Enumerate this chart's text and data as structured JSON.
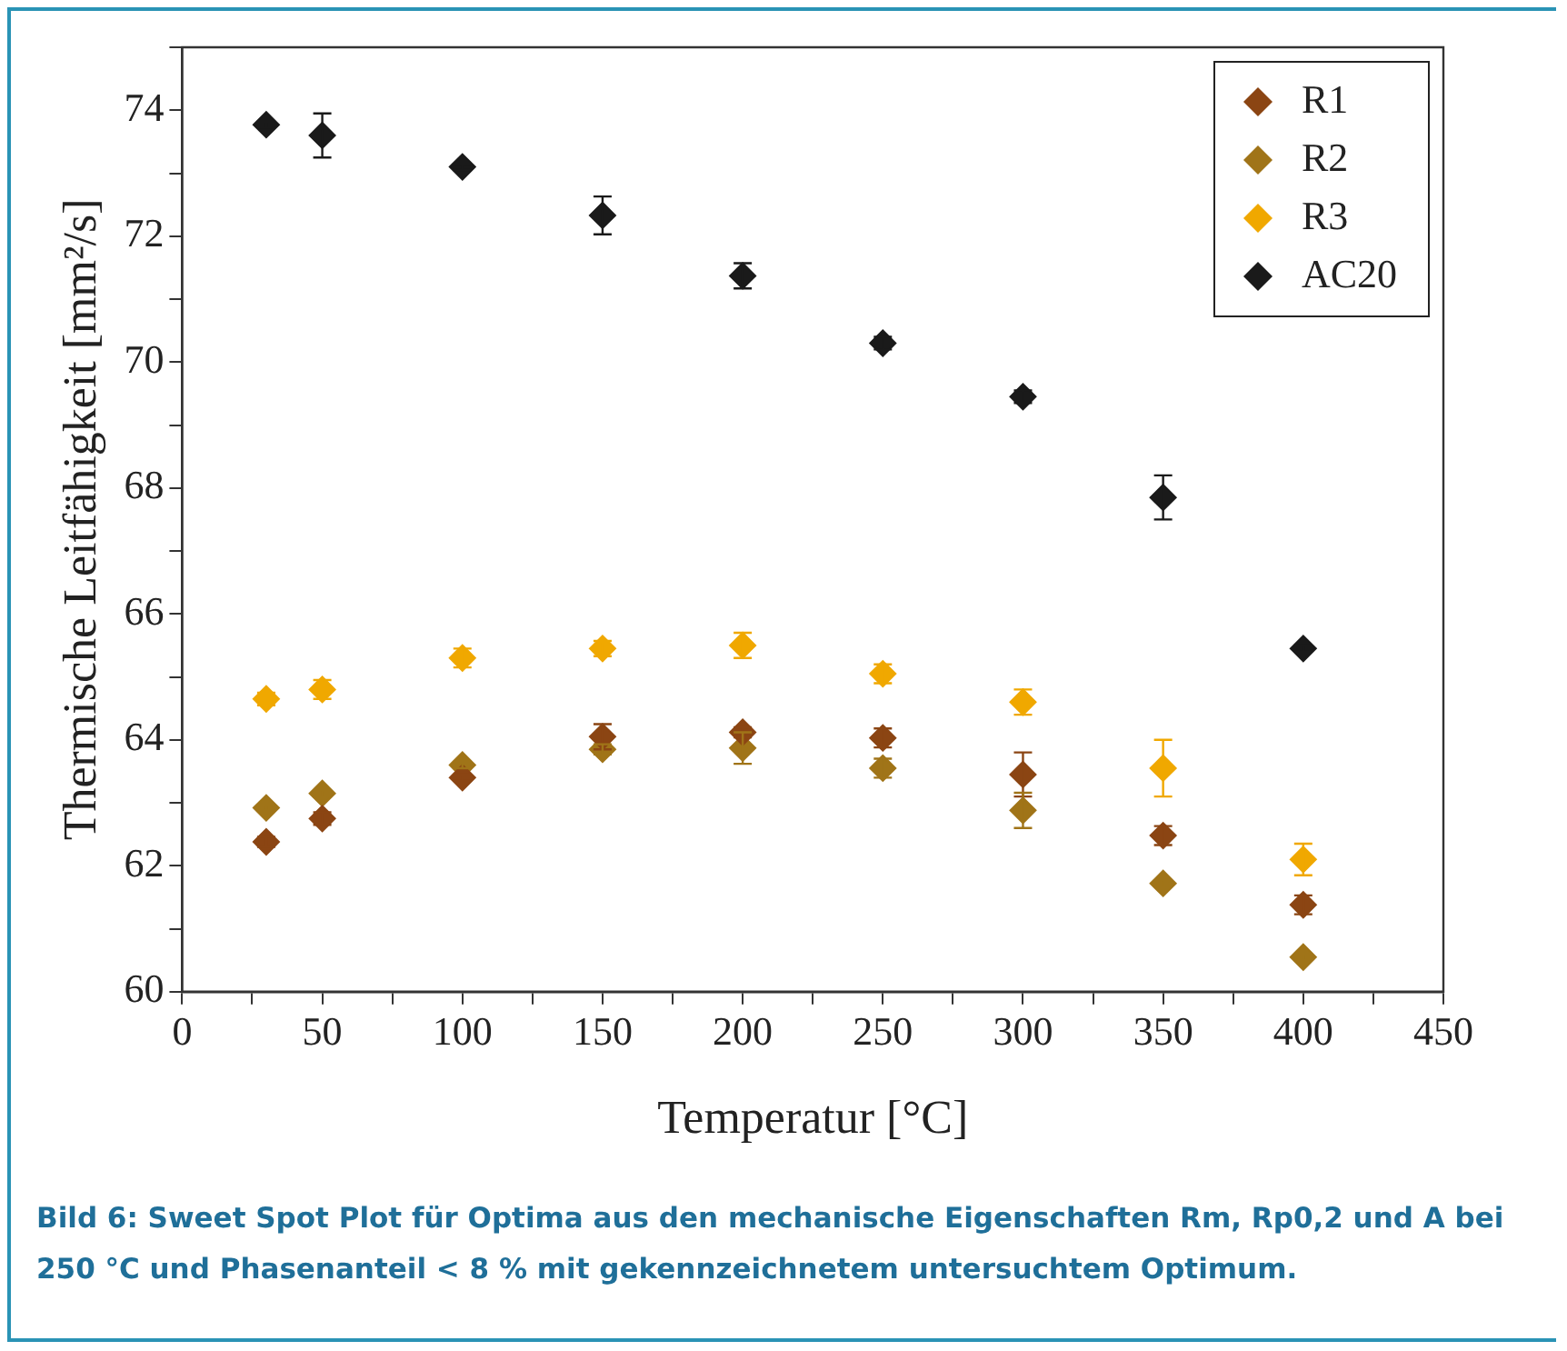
{
  "chart_data": {
    "type": "scatter",
    "xlabel": "Temperatur [°C]",
    "ylabel": "Thermische Leitfähigkeit [mm²/s]",
    "annotations": [
      "Bild 6: Sweet Spot Plot für Optima aus den mechanische Eigenschaften Rm, Rp0,2 und A bei 250 °C und Phasenanteil < 8 % mit gekennzeichnetem untersuchtem Optimum."
    ],
    "x": [
      30,
      50,
      100,
      150,
      200,
      250,
      300,
      350,
      400
    ],
    "series": [
      {
        "name": "R1",
        "color": "#8b4513",
        "values": [
          62.38,
          62.75,
          63.4,
          64.05,
          64.12,
          64.03,
          63.45,
          62.48,
          61.38
        ],
        "errors": [
          0.08,
          0.1,
          0.05,
          0.2,
          0.08,
          0.15,
          0.35,
          0.15,
          0.15
        ]
      },
      {
        "name": "R2",
        "color": "#a07418",
        "values": [
          62.92,
          63.15,
          63.6,
          63.85,
          63.87,
          63.55,
          62.88,
          61.72,
          60.55
        ],
        "errors": [
          0.05,
          0.05,
          0.05,
          0.08,
          0.25,
          0.15,
          0.28,
          0.05,
          0.05
        ]
      },
      {
        "name": "R3",
        "color": "#f0a800",
        "values": [
          64.65,
          64.8,
          65.3,
          65.45,
          65.5,
          65.05,
          64.6,
          63.55,
          62.1
        ],
        "errors": [
          0.1,
          0.15,
          0.15,
          0.12,
          0.2,
          0.15,
          0.2,
          0.45,
          0.25
        ]
      },
      {
        "name": "AC20",
        "color": "#1a1a1a",
        "values": [
          73.77,
          73.6,
          73.1,
          72.33,
          71.37,
          70.3,
          69.45,
          67.85,
          65.45
        ],
        "errors": [
          0.05,
          0.35,
          0.05,
          0.3,
          0.2,
          0.1,
          0.1,
          0.35,
          0.05
        ]
      }
    ],
    "xlim": [
      0,
      450
    ],
    "xticks": [
      0,
      {
        "value": 25,
        "label": null
      },
      50,
      {
        "value": 75,
        "label": null
      },
      100,
      {
        "value": 125,
        "label": null
      },
      150,
      {
        "value": 175,
        "label": null
      },
      200,
      {
        "value": 225,
        "label": null
      },
      250,
      {
        "value": 275,
        "label": null
      },
      300,
      {
        "value": 325,
        "label": null
      },
      350,
      {
        "value": 375,
        "label": null
      },
      400,
      {
        "value": 425,
        "label": null
      },
      450
    ],
    "ylim": [
      60,
      75
    ],
    "yticks": [
      60,
      {
        "value": 61,
        "label": null
      },
      62,
      {
        "value": 63,
        "label": null
      },
      64,
      {
        "value": 65,
        "label": null
      },
      66,
      {
        "value": 67,
        "label": null
      },
      68,
      {
        "value": 69,
        "label": null
      },
      70,
      {
        "value": 71,
        "label": null
      },
      72,
      {
        "value": 73,
        "label": null
      },
      74,
      {
        "value": 75,
        "label": null
      }
    ],
    "grid": false,
    "legend": "top right",
    "marker": "diamond"
  }
}
